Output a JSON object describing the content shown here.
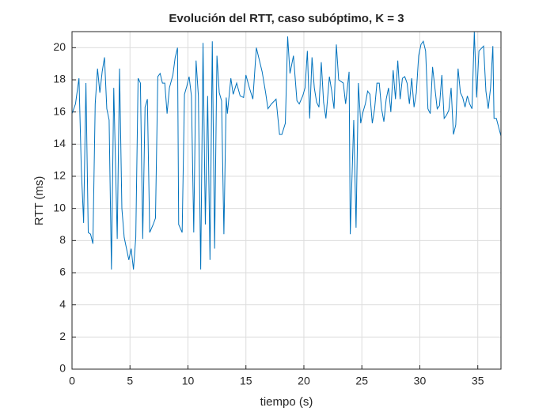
{
  "chart_data": {
    "type": "line",
    "title": "Evolución del RTT, caso subóptimo, K = 3",
    "x_label": "tiempo (s)",
    "y_label": "RTT (ms)",
    "x": [
      0,
      0.3,
      0.6,
      0.8,
      1.0,
      1.2,
      1.4,
      1.6,
      1.8,
      2.0,
      2.2,
      2.4,
      2.6,
      2.8,
      3.0,
      3.2,
      3.4,
      3.6,
      3.9,
      4.1,
      4.3,
      4.5,
      4.7,
      4.9,
      5.1,
      5.3,
      5.5,
      5.7,
      5.9,
      6.1,
      6.3,
      6.5,
      6.7,
      7.0,
      7.2,
      7.4,
      7.6,
      7.8,
      8.0,
      8.2,
      8.4,
      8.7,
      8.9,
      9.1,
      9.2,
      9.5,
      9.7,
      9.9,
      10.1,
      10.3,
      10.5,
      10.7,
      10.9,
      11.1,
      11.3,
      11.5,
      11.7,
      11.9,
      12.1,
      12.3,
      12.5,
      12.7,
      12.9,
      13.1,
      13.3,
      13.4,
      13.7,
      13.9,
      14.2,
      14.5,
      14.8,
      15.0,
      15.3,
      15.6,
      15.9,
      16.1,
      16.4,
      16.7,
      16.9,
      17.2,
      17.6,
      17.9,
      18.1,
      18.4,
      18.6,
      18.8,
      19.1,
      19.4,
      19.6,
      19.9,
      20.1,
      20.3,
      20.5,
      20.7,
      20.9,
      21.1,
      21.3,
      21.5,
      21.7,
      21.9,
      22.2,
      22.4,
      22.6,
      22.8,
      23.0,
      23.2,
      23.4,
      23.6,
      23.9,
      24.0,
      24.3,
      24.5,
      24.7,
      24.9,
      25.1,
      25.3,
      25.5,
      25.7,
      25.9,
      26.1,
      26.3,
      26.5,
      26.7,
      26.9,
      27.1,
      27.3,
      27.5,
      27.7,
      27.9,
      28.1,
      28.3,
      28.5,
      28.7,
      28.9,
      29.1,
      29.3,
      29.5,
      29.7,
      29.9,
      30.1,
      30.3,
      30.5,
      30.7,
      30.9,
      31.1,
      31.3,
      31.5,
      31.7,
      31.9,
      32.1,
      32.3,
      32.5,
      32.7,
      32.9,
      33.1,
      33.3,
      33.5,
      33.7,
      33.9,
      34.1,
      34.3,
      34.5,
      34.7,
      34.9,
      35.1,
      35.5,
      35.7,
      35.9,
      36.1,
      36.3,
      36.4,
      36.6,
      37.0
    ],
    "series": [
      {
        "name": "RTT",
        "color": "#0072bd",
        "values": [
          15.9,
          16.5,
          18.1,
          12.5,
          9.1,
          17.8,
          8.5,
          8.4,
          7.8,
          16.5,
          18.7,
          17.2,
          18.5,
          19.4,
          16.2,
          15.5,
          6.2,
          17.5,
          8.1,
          18.7,
          10,
          8.2,
          7.5,
          6.8,
          7.5,
          6.2,
          8.2,
          18.1,
          17.8,
          8.1,
          16.3,
          16.8,
          8.5,
          9,
          9.4,
          18.2,
          18.4,
          17.8,
          17.8,
          15.9,
          17.5,
          18.3,
          19.4,
          20.0,
          9,
          8.5,
          17.1,
          17.6,
          18.2,
          17,
          8.5,
          19.2,
          17,
          6.2,
          20.3,
          9,
          17,
          6.8,
          20.4,
          7.5,
          19.5,
          17.2,
          16.7,
          8.4,
          16.9,
          15.9,
          18.1,
          17.1,
          17.8,
          17,
          16.9,
          18.3,
          17.5,
          16.8,
          20.0,
          19.4,
          18.5,
          17.2,
          16.2,
          16.5,
          16.8,
          14.6,
          14.6,
          15.3,
          20.7,
          18.4,
          19.5,
          16.7,
          16.5,
          17,
          17.5,
          19.8,
          15.6,
          19.4,
          17.5,
          16.6,
          16.3,
          19.1,
          16.6,
          15.6,
          18.2,
          17.3,
          16.2,
          20.2,
          18,
          17.9,
          17.8,
          16.5,
          18.5,
          8.4,
          15.5,
          8.8,
          17.8,
          15.3,
          16,
          16.5,
          17.3,
          17.1,
          15.3,
          16.2,
          17.8,
          17.8,
          16.2,
          15.4,
          16.8,
          17.5,
          16,
          18.6,
          16.8,
          19.2,
          16.8,
          18.1,
          18.2,
          17.8,
          16.5,
          18.1,
          16.3,
          17.2,
          19.5,
          20.2,
          20.4,
          19.8,
          16.2,
          15.9,
          18.8,
          17.5,
          16.2,
          16.4,
          18.3,
          15.6,
          15.8,
          16.1,
          17.5,
          14.6,
          15.2,
          18.7,
          17.2,
          16.9,
          16.3,
          17,
          16.5,
          16.2,
          21,
          16.9,
          19.8,
          20.1,
          17.3,
          16.2,
          17.5,
          20.1,
          15.6,
          15.6,
          14.5
        ]
      }
    ],
    "xlim": [
      0,
      37
    ],
    "ylim": [
      0,
      21
    ],
    "xticks": [
      0,
      5,
      10,
      15,
      20,
      25,
      30,
      35
    ],
    "yticks": [
      0,
      2,
      4,
      6,
      8,
      10,
      12,
      14,
      16,
      18,
      20
    ],
    "grid": true
  }
}
